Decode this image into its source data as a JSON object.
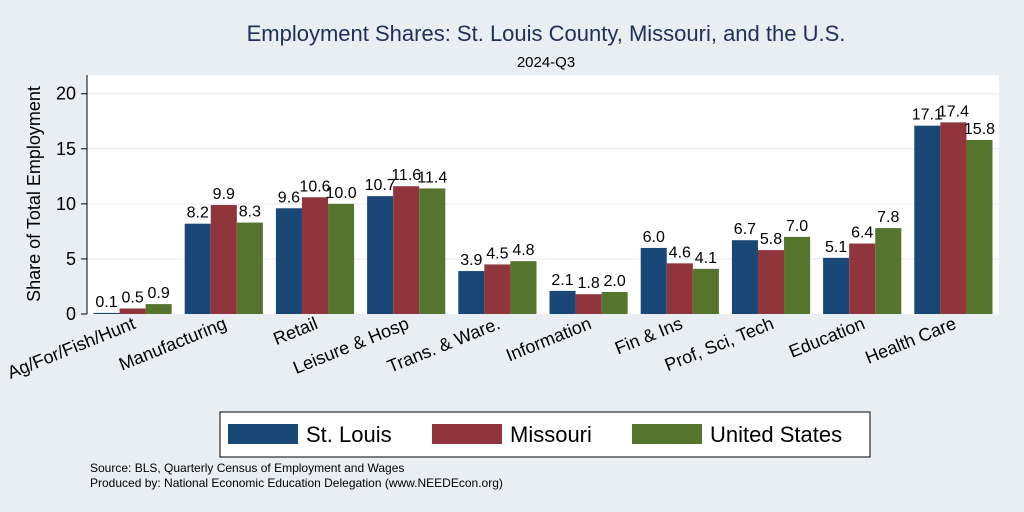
{
  "chart_data": {
    "type": "bar",
    "title": "Employment Shares: St. Louis County, Missouri, and the U.S.",
    "subtitle": "2024-Q3",
    "ylabel": "Share of Total Employment",
    "xlabel": "",
    "ylim": [
      0,
      21.7
    ],
    "yticks": [
      0,
      5,
      10,
      15,
      20
    ],
    "grid": true,
    "legend_position": "bottom",
    "categories": [
      "Ag/For/Fish/Hunt",
      "Manufacturing",
      "Retail",
      "Leisure & Hosp",
      "Trans. & Ware.",
      "Information",
      "Fin & Ins",
      "Prof, Sci, Tech",
      "Education",
      "Health Care"
    ],
    "series": [
      {
        "name": "St. Louis",
        "color": "#1a4876",
        "values": [
          0.1,
          8.2,
          9.6,
          10.7,
          3.9,
          2.1,
          6.0,
          6.7,
          5.1,
          17.1
        ],
        "labels": [
          "0.1",
          "8.2",
          "9.6",
          "10.7",
          "3.9",
          "2.1",
          "6.0",
          "6.7",
          "5.1",
          "17.1"
        ]
      },
      {
        "name": "Missouri",
        "color": "#90353b",
        "values": [
          0.5,
          9.9,
          10.6,
          11.6,
          4.5,
          1.8,
          4.6,
          5.8,
          6.4,
          17.4
        ],
        "labels": [
          "0.5",
          "9.9",
          "10.6",
          "11.6",
          "4.5",
          "1.8",
          "4.6",
          "5.8",
          "6.4",
          "17.4"
        ]
      },
      {
        "name": "United States",
        "color": "#55752f",
        "values": [
          0.9,
          8.3,
          10.0,
          11.4,
          4.8,
          2.0,
          4.1,
          7.0,
          7.8,
          15.8
        ],
        "labels": [
          "0.9",
          "8.3",
          "10.0",
          "11.4",
          "4.8",
          "2.0",
          "4.1",
          "7.0",
          "7.8",
          "15.8"
        ]
      }
    ]
  },
  "footer": {
    "source": "Source: BLS, Quarterly Census of Employment and Wages",
    "produced_by": "Produced by: National Economic Education Delegation (www.NEEDEcon.org)"
  }
}
